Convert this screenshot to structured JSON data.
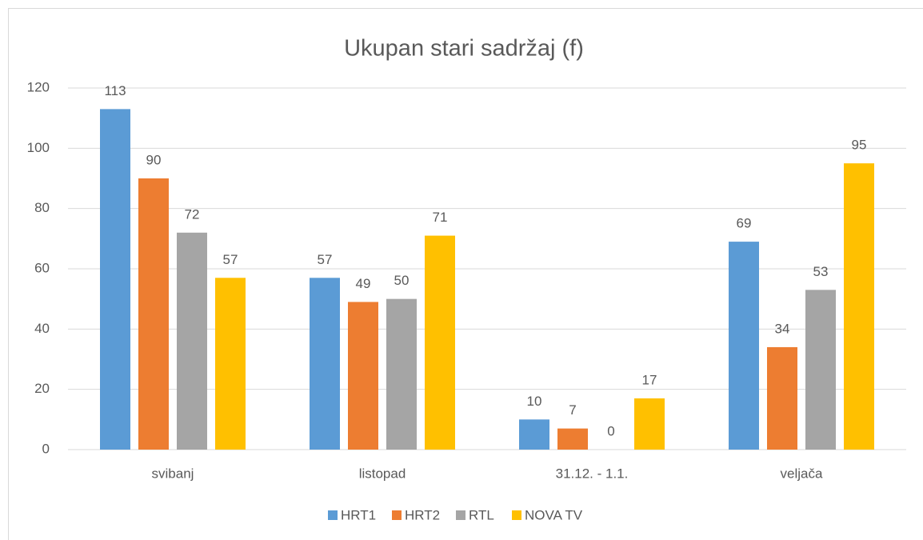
{
  "chart_data": {
    "type": "bar",
    "title": "Ukupan stari sadržaj (f)",
    "categories": [
      "svibanj",
      "listopad",
      "31.12. - 1.1.",
      "veljača"
    ],
    "series": [
      {
        "name": "HRT1",
        "color": "#5b9bd5",
        "values": [
          113,
          57,
          10,
          69
        ]
      },
      {
        "name": "HRT2",
        "color": "#ed7d31",
        "values": [
          90,
          49,
          7,
          34
        ]
      },
      {
        "name": "RTL",
        "color": "#a5a5a5",
        "values": [
          72,
          50,
          0,
          53
        ]
      },
      {
        "name": "NOVA TV",
        "color": "#ffc000",
        "values": [
          57,
          71,
          17,
          95
        ]
      }
    ],
    "ylim": [
      0,
      120
    ],
    "yticks": [
      0,
      20,
      40,
      60,
      80,
      100,
      120
    ],
    "grid": true,
    "legend": "bottom"
  }
}
